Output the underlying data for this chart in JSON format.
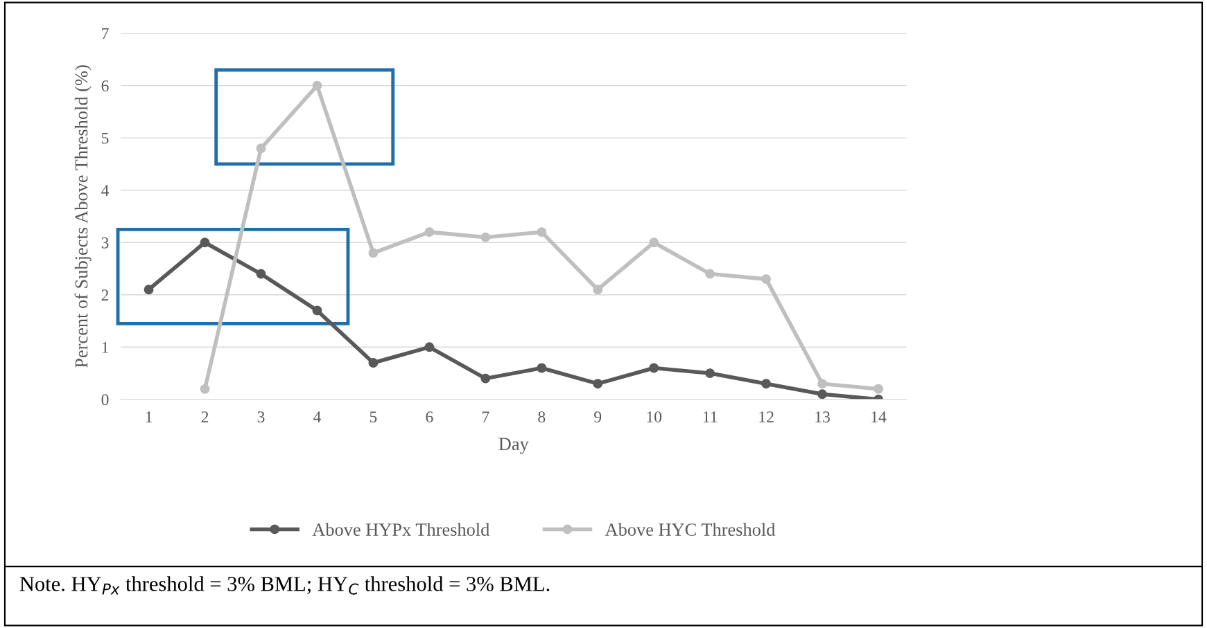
{
  "chart_data": {
    "type": "line",
    "xlabel": "Day",
    "ylabel": "Percent of Subjects Above Threshold (%)",
    "categories": [
      "1",
      "2",
      "3",
      "4",
      "5",
      "6",
      "7",
      "8",
      "9",
      "10",
      "11",
      "12",
      "13",
      "14"
    ],
    "series": [
      {
        "name": "Above HYPx Threshold",
        "color": "#595959",
        "values": [
          2.1,
          3.0,
          2.4,
          1.7,
          0.7,
          1.0,
          0.4,
          0.6,
          0.3,
          0.6,
          0.5,
          0.3,
          0.1,
          0
        ]
      },
      {
        "name": "Above HYC Threshold",
        "color": "#bfbfbf",
        "values": [
          null,
          0.2,
          4.8,
          6.0,
          2.8,
          3.2,
          3.1,
          3.2,
          2.1,
          3.0,
          2.4,
          2.3,
          0.3,
          0.2
        ]
      }
    ],
    "ylim": [
      0,
      7
    ],
    "yticks": [
      0,
      1,
      2,
      3,
      4,
      5,
      6,
      7
    ],
    "grid": "y",
    "legend": "bottom",
    "marker": "circle",
    "line_style": "solid",
    "annotations": [
      "Note. HY$_{Px}$ threshold = 3% BML; HY$_{C}$ threshold = 3% BML."
    ]
  }
}
